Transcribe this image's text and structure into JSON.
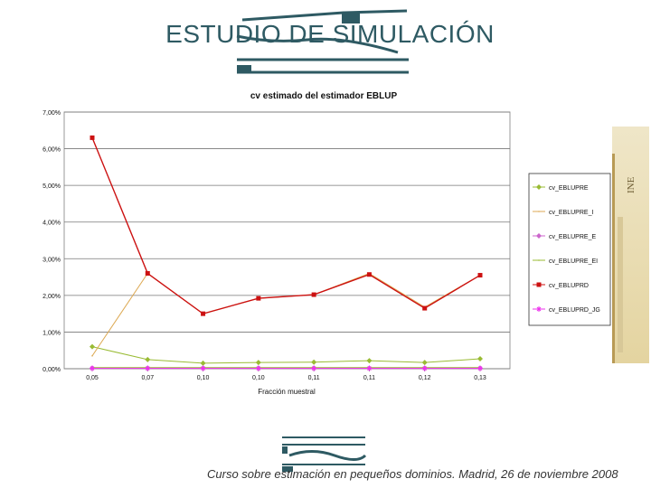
{
  "slide": {
    "title": "ESTUDIO DE SIMULACIÓN",
    "footer": "Curso sobre estimación en pequeños dominios. Madrid, 26 de noviembre 2008"
  },
  "colors": {
    "title": "#2e5a63",
    "series_green": "#99bb33",
    "series_orange": "#ddaa55",
    "series_purple": "#cc66cc",
    "series_red": "#cc1111",
    "series_magenta": "#ee33ee"
  },
  "chart_data": {
    "type": "line",
    "title": "cv estimado del estimador EBLUP",
    "xlabel": "Fracción muestral",
    "ylabel": "",
    "categories": [
      "0,05",
      "0,07",
      "0,10",
      "0,10",
      "0,11",
      "0,11",
      "0,12",
      "0,13"
    ],
    "ylim": [
      0,
      7
    ],
    "yticks": [
      "0,00%",
      "1,00%",
      "2,00%",
      "3,00%",
      "4,00%",
      "5,00%",
      "6,00%",
      "7,00%"
    ],
    "grid": true,
    "legend_position": "right",
    "series": [
      {
        "name": "cv_EBLUPRE",
        "color": "#99bb33",
        "marker": "diamond",
        "values": [
          0.6,
          0.25,
          0.15,
          0.17,
          0.18,
          0.22,
          0.17,
          0.27
        ]
      },
      {
        "name": "cv_EBLUPRE_I",
        "color": "#ddaa55",
        "marker": "none",
        "values": [
          0.35,
          2.6,
          1.5,
          1.92,
          2.02,
          2.6,
          1.68,
          2.55
        ]
      },
      {
        "name": "cv_EBLUPRE_E",
        "color": "#cc66cc",
        "marker": "diamond",
        "values": [
          0.02,
          0.02,
          0.02,
          0.02,
          0.02,
          0.02,
          0.02,
          0.02
        ]
      },
      {
        "name": "cv_EBLUPRE_EI",
        "color": "#99bb33",
        "marker": "none",
        "values": [
          0.03,
          0.03,
          0.03,
          0.03,
          0.03,
          0.03,
          0.03,
          0.03
        ]
      },
      {
        "name": "cv_EBLUPRD",
        "color": "#cc1111",
        "marker": "square",
        "values": [
          6.3,
          2.6,
          1.5,
          1.92,
          2.02,
          2.57,
          1.65,
          2.55
        ]
      },
      {
        "name": "cv_EBLUPRD_JG",
        "color": "#ee33ee",
        "marker": "star",
        "values": [
          0.01,
          0.01,
          0.01,
          0.01,
          0.01,
          0.01,
          0.01,
          0.01
        ]
      }
    ]
  }
}
